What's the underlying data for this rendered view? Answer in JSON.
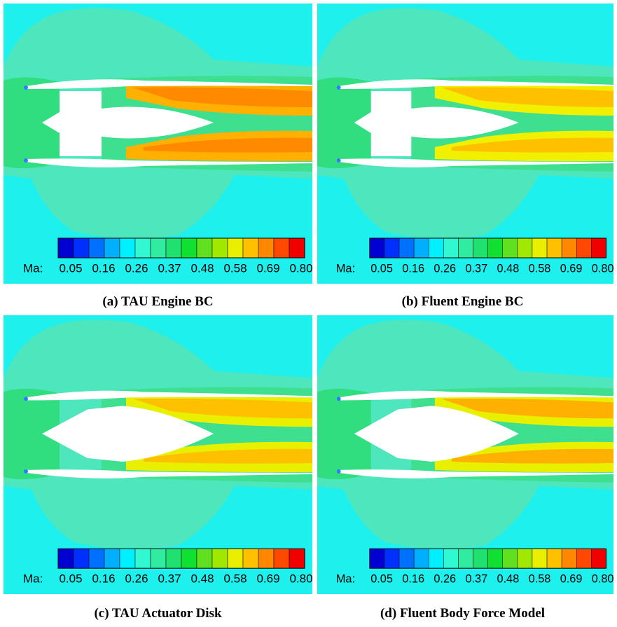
{
  "panels": [
    {
      "caption": "(a) TAU Engine BC",
      "colorbar": {
        "label": "Ma:",
        "ticks": [
          "0.05",
          "0.16",
          "0.26",
          "0.37",
          "0.48",
          "0.58",
          "0.69",
          "0.80"
        ]
      }
    },
    {
      "caption": "(b) Fluent Engine BC",
      "colorbar": {
        "label": "Ma:",
        "ticks": [
          "0.05",
          "0.16",
          "0.26",
          "0.37",
          "0.48",
          "0.58",
          "0.69",
          "0.80"
        ]
      }
    },
    {
      "caption": "(c) TAU Actuator Disk",
      "colorbar": {
        "label": "Ma:",
        "ticks": [
          "0.05",
          "0.16",
          "0.26",
          "0.37",
          "0.48",
          "0.58",
          "0.69",
          "0.80"
        ]
      }
    },
    {
      "caption": "(d) Fluent Body Force Model",
      "colorbar": {
        "label": "Ma:",
        "ticks": [
          "0.05",
          "0.16",
          "0.26",
          "0.37",
          "0.48",
          "0.58",
          "0.69",
          "0.80"
        ]
      }
    }
  ],
  "colorbar_colors": [
    "#0000d0",
    "#0030ff",
    "#0070ff",
    "#00b0ff",
    "#00f0ff",
    "#30f8d0",
    "#30eca0",
    "#20e070",
    "#10e030",
    "#60e020",
    "#a0e800",
    "#e8f000",
    "#ffc000",
    "#ff8800",
    "#ff4800",
    "#f00000"
  ]
}
